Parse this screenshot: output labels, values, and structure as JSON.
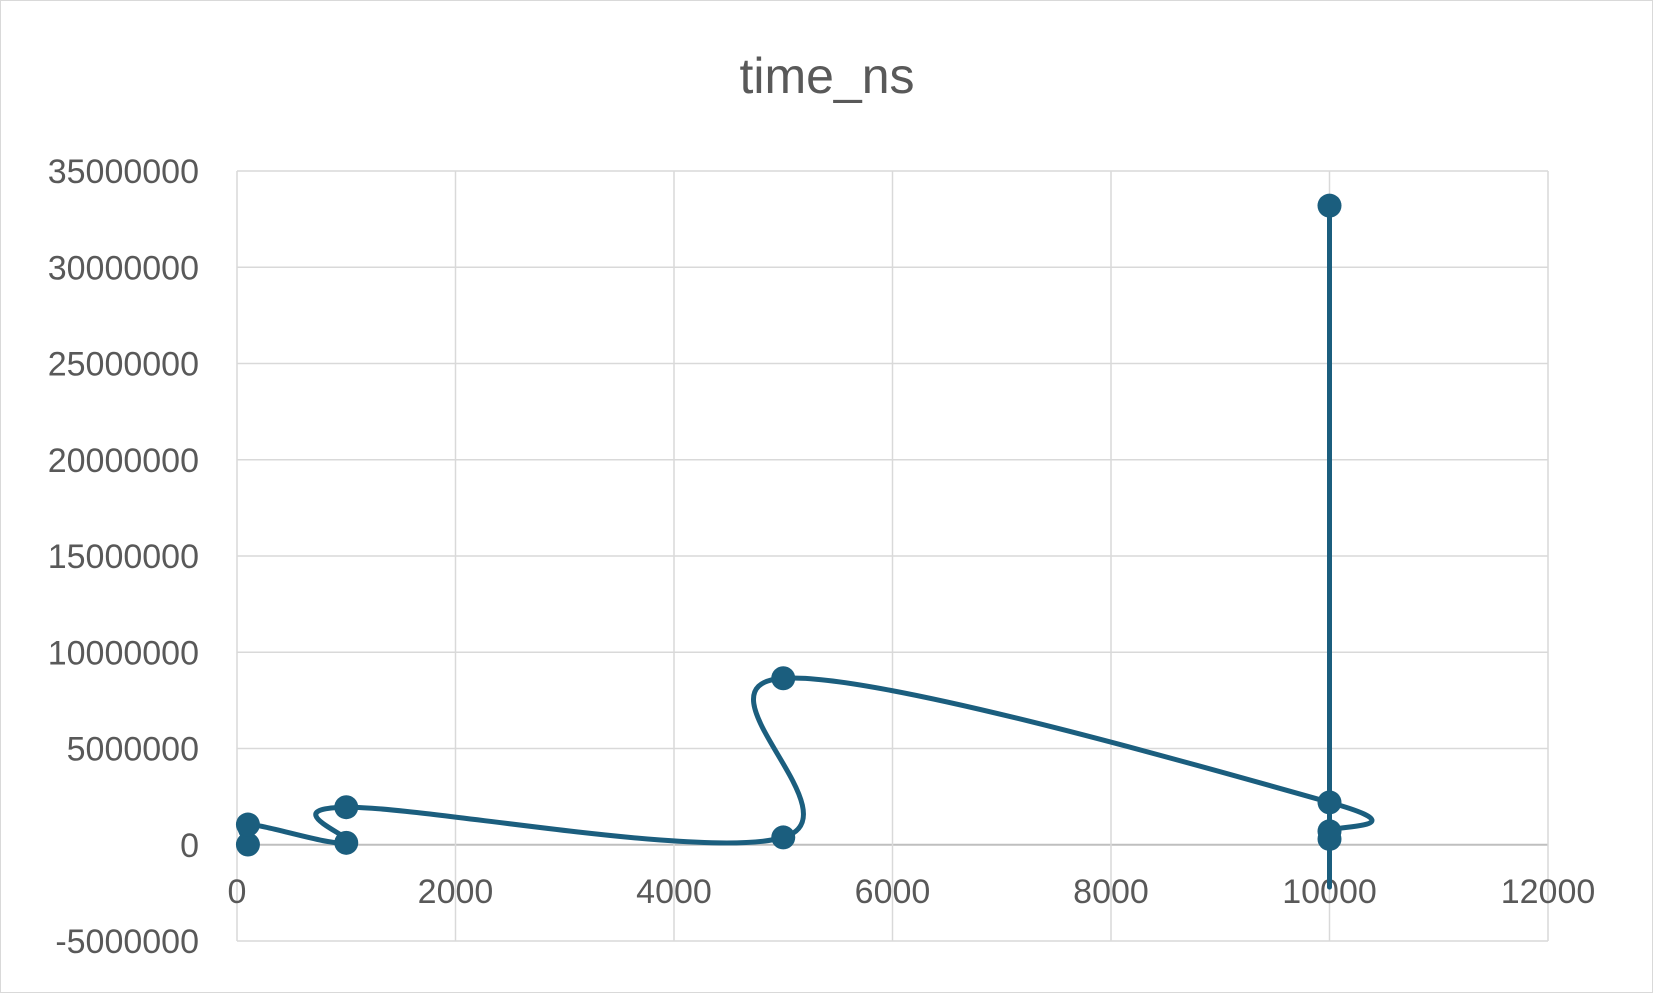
{
  "chart_data": {
    "type": "scatter",
    "title": "time_ns",
    "xlabel": "",
    "ylabel": "",
    "xlim": [
      0,
      12000
    ],
    "ylim": [
      -5000000,
      35000000
    ],
    "x_ticks": [
      0,
      2000,
      4000,
      6000,
      8000,
      10000,
      12000
    ],
    "y_ticks": [
      -5000000,
      0,
      5000000,
      10000000,
      15000000,
      20000000,
      25000000,
      30000000,
      35000000
    ],
    "grid": true,
    "legend": "none",
    "smooth_lines": true,
    "series": [
      {
        "color": "#1b5e7e",
        "points": [
          {
            "x": 100,
            "y": 10000
          },
          {
            "x": 100,
            "y": 1050000
          },
          {
            "x": 1000,
            "y": 100000
          },
          {
            "x": 1000,
            "y": 1950000
          },
          {
            "x": 5000,
            "y": 380000
          },
          {
            "x": 5000,
            "y": 8650000
          },
          {
            "x": 10000,
            "y": 2200000
          },
          {
            "x": 10000,
            "y": 700000
          },
          {
            "x": 10000,
            "y": 300000
          },
          {
            "x": 10000,
            "y": 33200000
          }
        ]
      }
    ]
  }
}
